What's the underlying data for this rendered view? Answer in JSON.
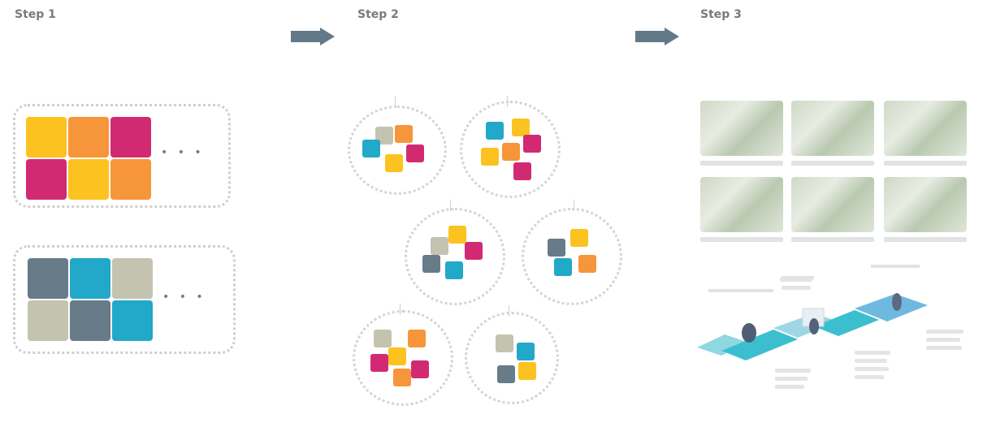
{
  "steps": [
    {
      "title": "Step 1",
      "line1": "",
      "line2": ""
    },
    {
      "title": "Step 2",
      "line1": "",
      "line2": ""
    },
    {
      "title": "Step 3",
      "line1": "",
      "line2": ""
    }
  ],
  "palettes": {
    "top_label": "",
    "bottom_label": "",
    "ellipsis": "• • •"
  },
  "clusters": [
    {
      "label": ""
    },
    {
      "label": ""
    },
    {
      "label": ""
    },
    {
      "label": ""
    },
    {
      "label": ""
    },
    {
      "label": ""
    }
  ],
  "colors": {
    "yellow": "#fcc21f",
    "orange": "#f7953a",
    "magenta": "#d22a72",
    "slate": "#677b88",
    "cyan": "#22a8c8",
    "beige": "#c3c3b0",
    "arrow": "#637988",
    "route_cyan": "#3bbfcf",
    "route_blue": "#6fb9e0"
  }
}
